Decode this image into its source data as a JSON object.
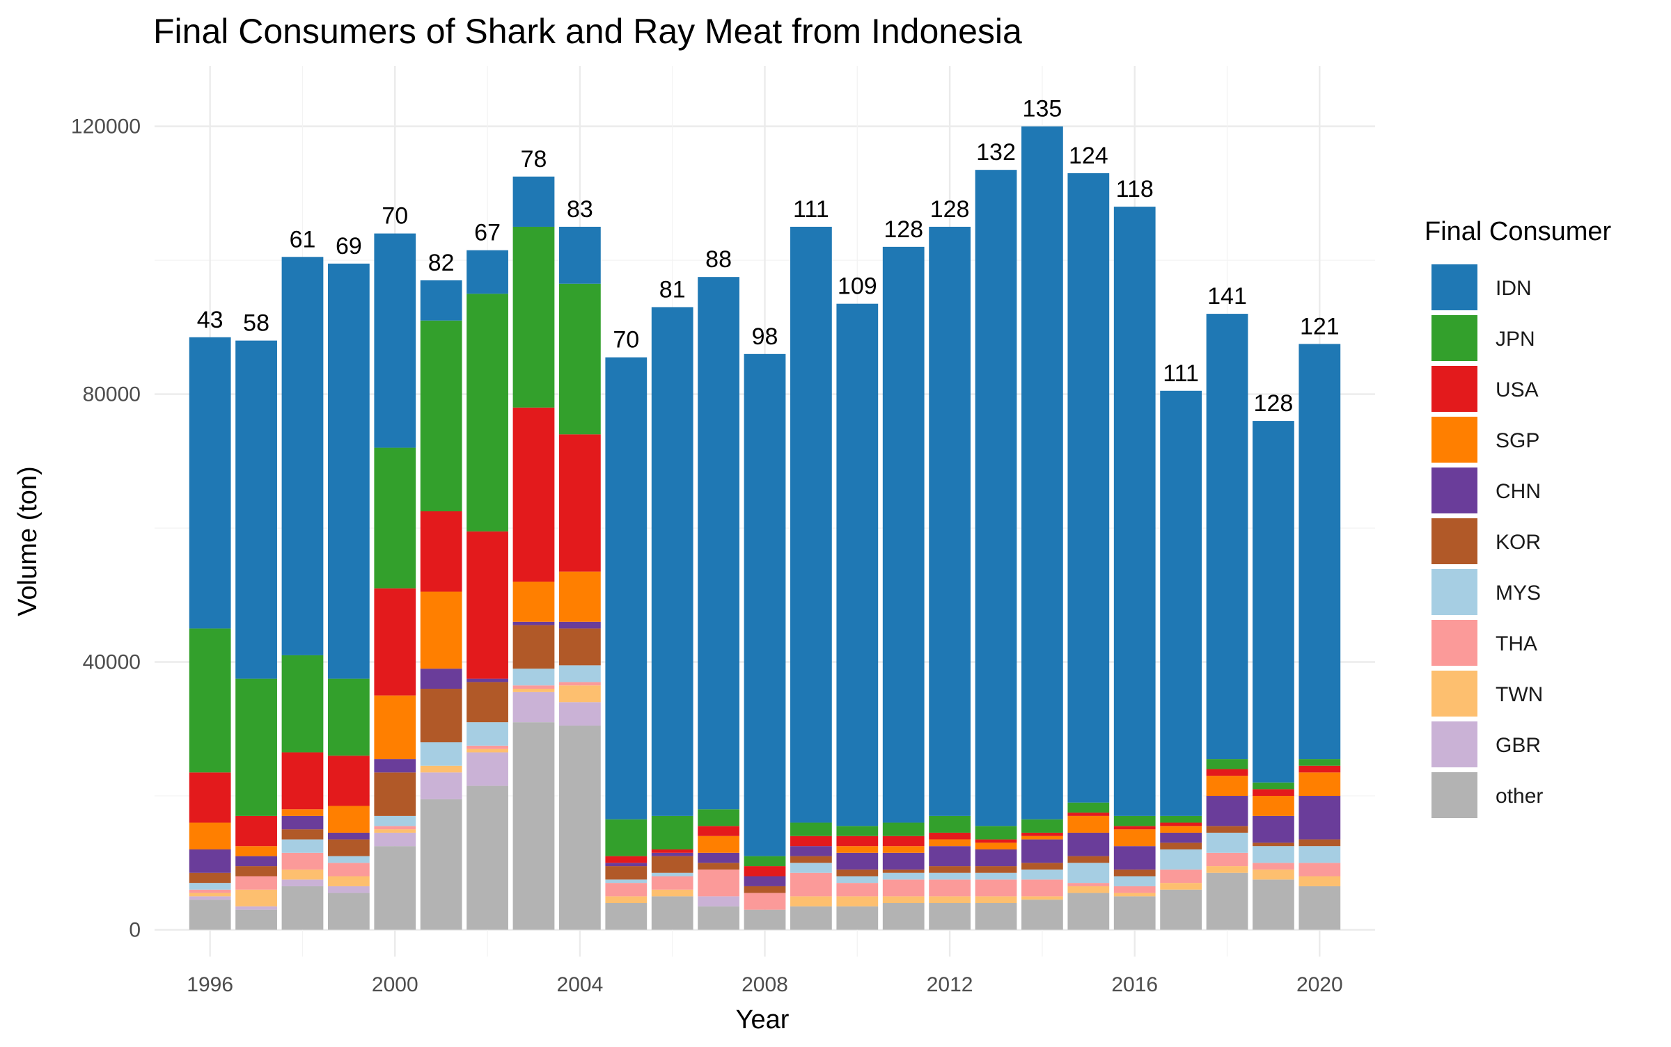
{
  "chart_data": {
    "type": "bar",
    "stacked": true,
    "title": "Final Consumers of Shark and Ray Meat from Indonesia",
    "xlabel": "Year",
    "ylabel": "Volume (ton)",
    "legend_title": "Final Consumer",
    "legend_position": "right",
    "grid": true,
    "xlim": [
      1994.8,
      2021.2
    ],
    "ylim": [
      -4000,
      129000
    ],
    "x_ticks": [
      "1996",
      "2000",
      "2004",
      "2008",
      "2012",
      "2016",
      "2020"
    ],
    "y_ticks": [
      "0",
      "40000",
      "80000",
      "120000"
    ],
    "x": [
      1996,
      1997,
      1998,
      1999,
      2000,
      2001,
      2002,
      2003,
      2004,
      2005,
      2006,
      2007,
      2008,
      2009,
      2010,
      2011,
      2012,
      2013,
      2014,
      2015,
      2016,
      2017,
      2018,
      2019,
      2020
    ],
    "bar_labels": [
      "43",
      "58",
      "61",
      "69",
      "70",
      "82",
      "67",
      "78",
      "83",
      "70",
      "81",
      "88",
      "98",
      "111",
      "109",
      "128",
      "128",
      "132",
      "135",
      "124",
      "118",
      "111",
      "141",
      "128",
      "121"
    ],
    "series": [
      {
        "name": "other",
        "color": "#b3b3b3",
        "values": [
          4500,
          3000,
          6500,
          5500,
          12500,
          19500,
          21500,
          31000,
          30500,
          4000,
          5000,
          3500,
          3000,
          3500,
          3500,
          4000,
          4000,
          4000,
          4500,
          5500,
          5000,
          6000,
          8500,
          7500,
          6500
        ]
      },
      {
        "name": "GBR",
        "color": "#cab2d6",
        "values": [
          500,
          500,
          1000,
          1000,
          2000,
          4000,
          5000,
          4500,
          3500,
          0,
          0,
          1500,
          0,
          0,
          0,
          0,
          0,
          0,
          0,
          0,
          0,
          0,
          0,
          0,
          0
        ]
      },
      {
        "name": "TWN",
        "color": "#fdbf6f",
        "values": [
          500,
          2500,
          1500,
          1500,
          500,
          1000,
          500,
          500,
          2500,
          1000,
          1000,
          0,
          0,
          1500,
          1500,
          1000,
          1000,
          1000,
          500,
          1000,
          500,
          1000,
          1000,
          1500,
          1500
        ]
      },
      {
        "name": "THA",
        "color": "#fb9a99",
        "values": [
          500,
          2000,
          2500,
          2000,
          500,
          0,
          500,
          500,
          500,
          2000,
          2000,
          4000,
          2500,
          3500,
          2000,
          2500,
          2500,
          2500,
          2500,
          500,
          1000,
          2000,
          2000,
          1000,
          2000
        ]
      },
      {
        "name": "MYS",
        "color": "#a6cee3",
        "values": [
          1000,
          0,
          2000,
          1000,
          1500,
          3500,
          3500,
          2500,
          2500,
          500,
          500,
          0,
          0,
          1500,
          1000,
          1000,
          1000,
          1000,
          1500,
          3000,
          1500,
          3000,
          3000,
          2500,
          2500
        ]
      },
      {
        "name": "KOR",
        "color": "#b15928",
        "values": [
          1500,
          1500,
          1500,
          2500,
          6500,
          8000,
          6000,
          6500,
          5500,
          2000,
          2500,
          1000,
          1000,
          1000,
          1000,
          500,
          1000,
          1000,
          1000,
          1000,
          1000,
          1000,
          1000,
          500,
          1000
        ]
      },
      {
        "name": "CHN",
        "color": "#6a3d9a",
        "values": [
          3500,
          1500,
          2000,
          1000,
          2000,
          3000,
          500,
          500,
          1000,
          500,
          500,
          1500,
          1500,
          1500,
          2500,
          2500,
          3000,
          2500,
          3500,
          3500,
          3500,
          1500,
          4500,
          4000,
          6500
        ]
      },
      {
        "name": "SGP",
        "color": "#ff7f00",
        "values": [
          4000,
          1500,
          1000,
          4000,
          9500,
          11500,
          0,
          6000,
          7500,
          0,
          0,
          2500,
          0,
          0,
          1000,
          1000,
          1000,
          1000,
          500,
          2500,
          2500,
          1000,
          3000,
          3000,
          3500
        ]
      },
      {
        "name": "USA",
        "color": "#e31a1c",
        "values": [
          7500,
          4500,
          8500,
          7500,
          16000,
          12000,
          22000,
          26000,
          20500,
          1000,
          500,
          1500,
          1500,
          1500,
          1500,
          1500,
          1000,
          500,
          500,
          500,
          500,
          500,
          1000,
          1000,
          1000
        ]
      },
      {
        "name": "JPN",
        "color": "#33a02c",
        "values": [
          21500,
          20500,
          14500,
          11500,
          21000,
          28500,
          35500,
          27000,
          22500,
          5500,
          5000,
          2500,
          1500,
          2000,
          1500,
          2000,
          2500,
          2000,
          2000,
          1500,
          1500,
          1000,
          1500,
          1000,
          1000
        ]
      },
      {
        "name": "IDN",
        "color": "#1f78b4",
        "values": [
          43500,
          50500,
          59500,
          62000,
          32000,
          6000,
          6500,
          7500,
          8500,
          69000,
          76000,
          79500,
          75000,
          89000,
          78000,
          86000,
          88000,
          98000,
          103500,
          94000,
          91000,
          63500,
          66500,
          54000,
          62000
        ]
      }
    ],
    "legend_order": [
      "IDN",
      "JPN",
      "USA",
      "SGP",
      "CHN",
      "KOR",
      "MYS",
      "THA",
      "TWN",
      "GBR",
      "other"
    ]
  }
}
